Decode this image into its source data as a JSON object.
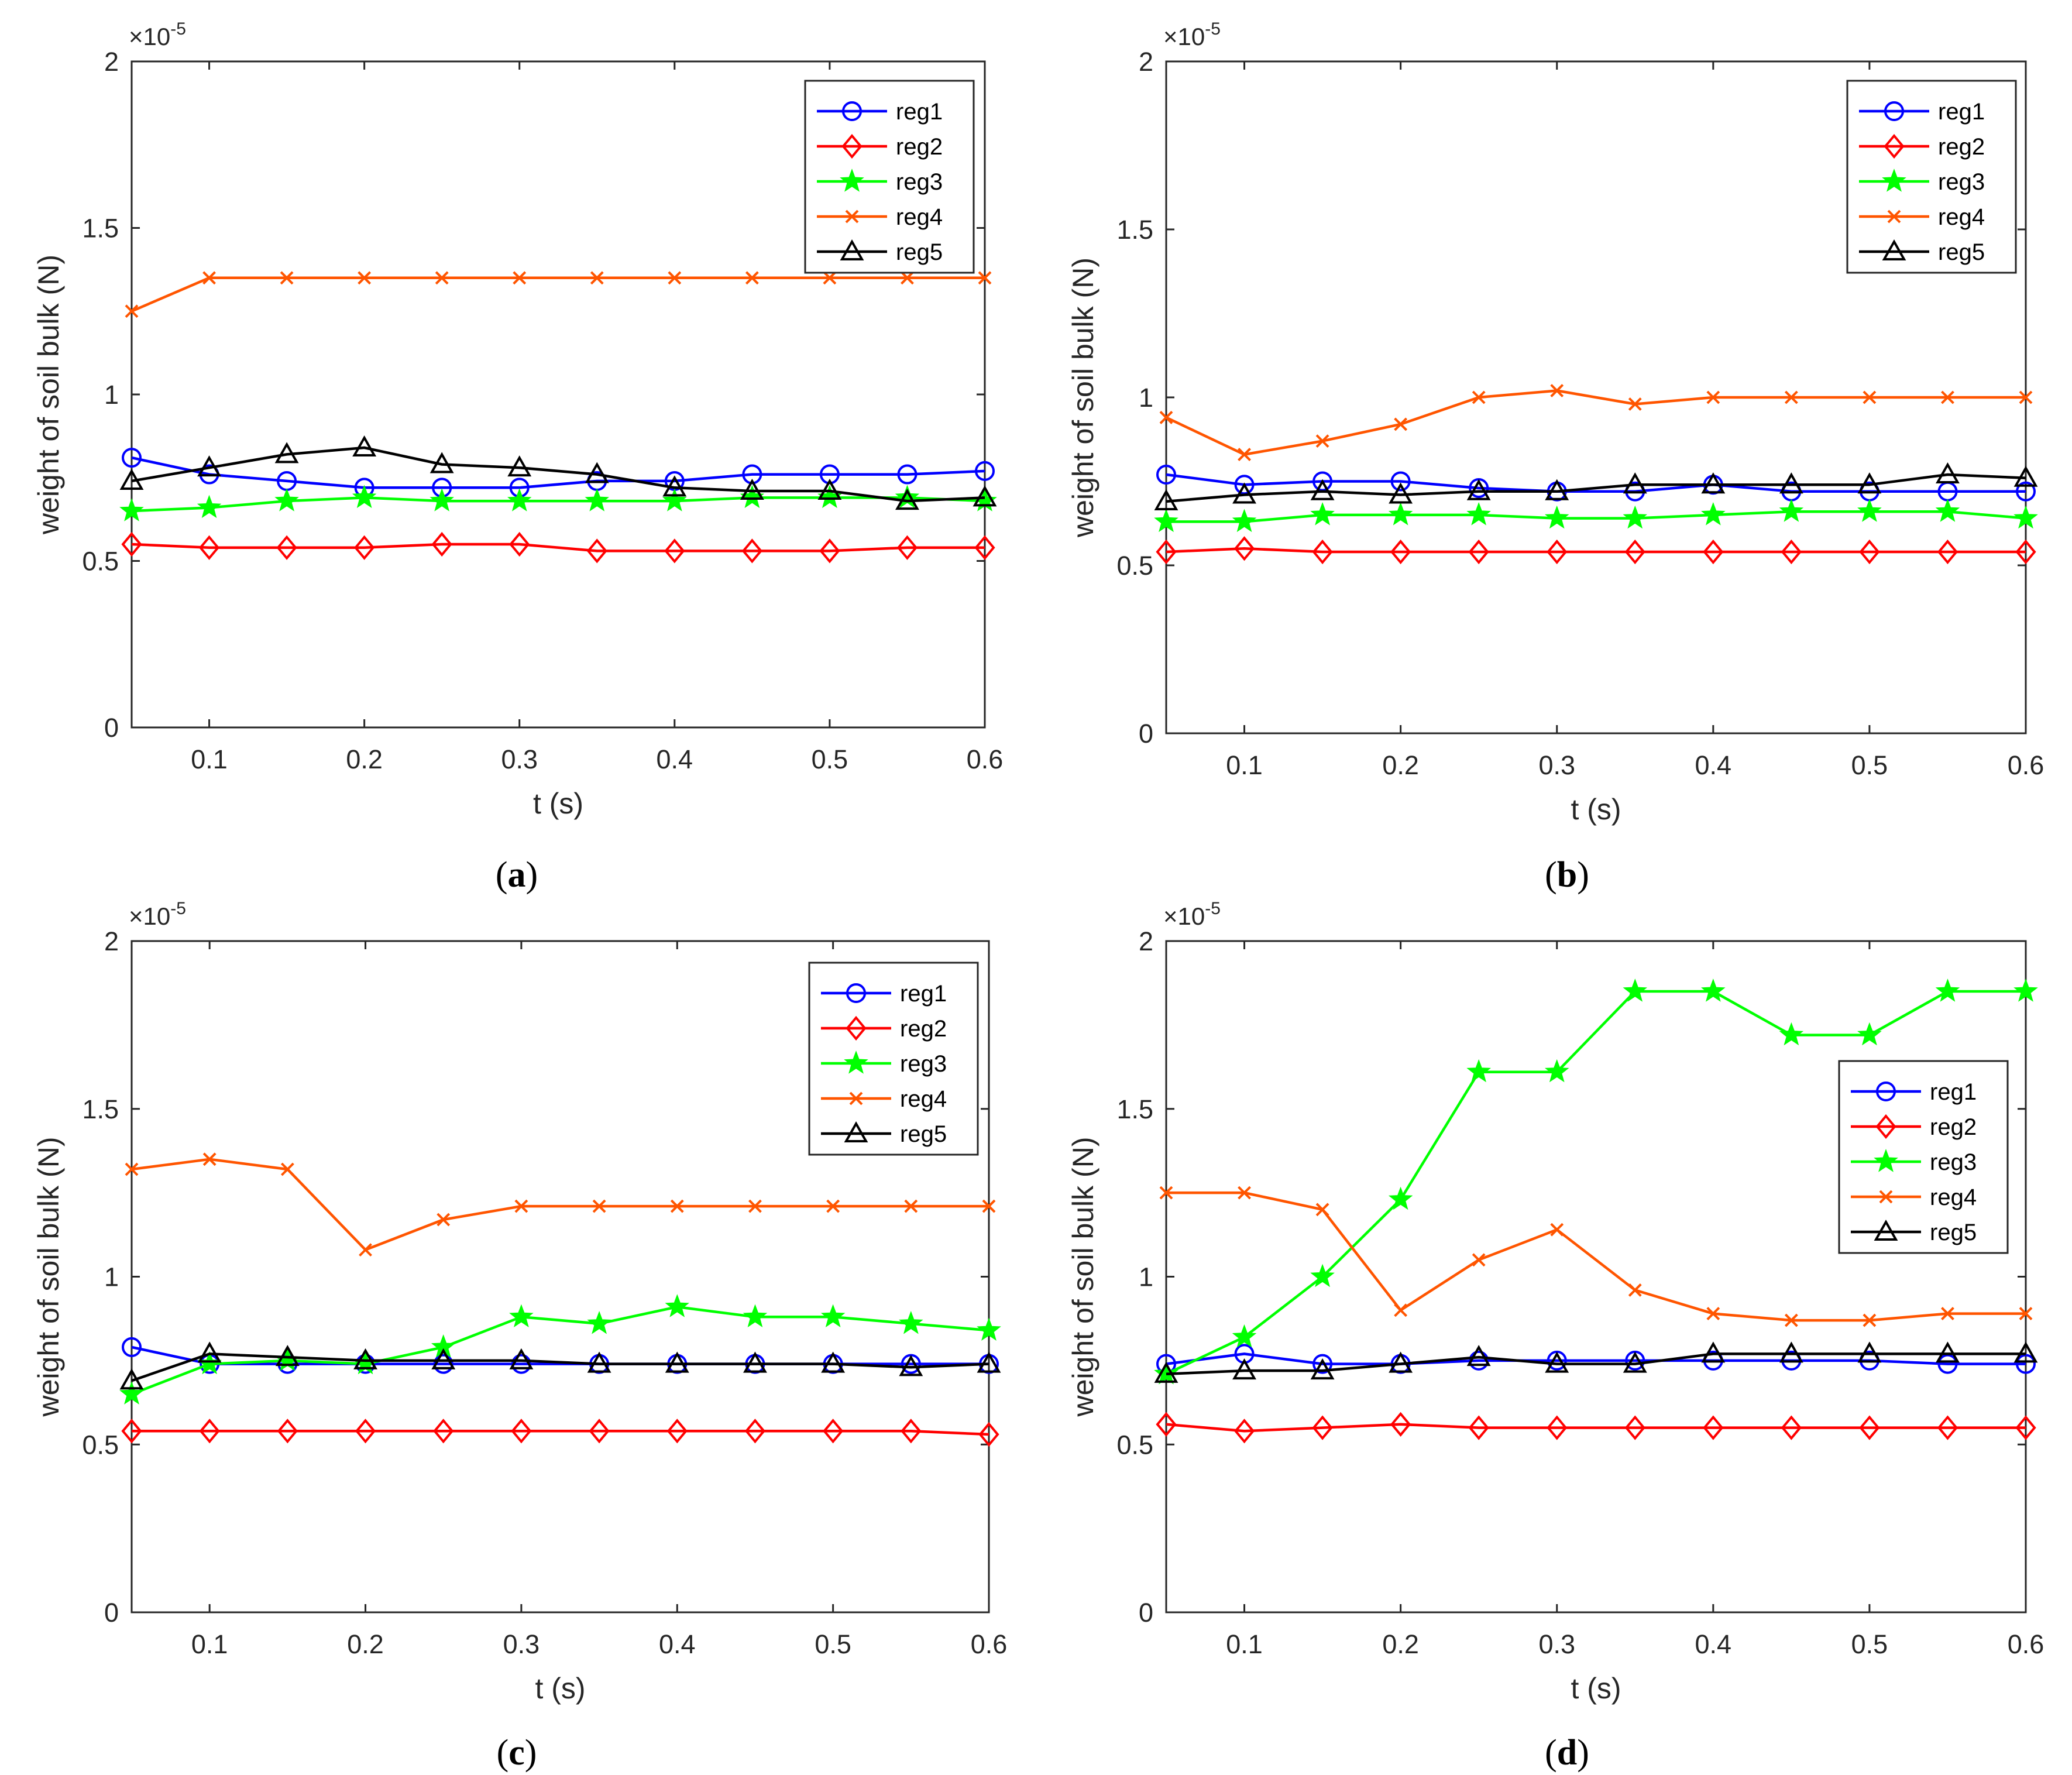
{
  "figure": {
    "panel_captions": [
      {
        "open": "(",
        "letter": "a",
        "close": ")"
      },
      {
        "open": "(",
        "letter": "b",
        "close": ")"
      },
      {
        "open": "(",
        "letter": "c",
        "close": ")"
      },
      {
        "open": "(",
        "letter": "d",
        "close": ")"
      }
    ]
  },
  "colors": {
    "reg1": "#0000ff",
    "reg2": "#ff0000",
    "reg3": "#00ff00",
    "reg4": "#ff5500",
    "reg5": "#000000"
  },
  "markers": {
    "reg1": "circle",
    "reg2": "diamond",
    "reg3": "star",
    "reg4": "x",
    "reg5": "triangle"
  },
  "chart_data": [
    {
      "type": "line",
      "panel": "a",
      "xlabel": "t (s)",
      "ylabel": "weight of soil bulk (N)",
      "y_multiplier": "×10",
      "y_exponent": "-5",
      "xlim": [
        0.05,
        0.6
      ],
      "ylim": [
        0,
        2
      ],
      "xticks": [
        "0.1",
        "0.2",
        "0.3",
        "0.4",
        "0.5",
        "0.6"
      ],
      "yticks": [
        "0",
        "0.5",
        "1",
        "1.5",
        "2"
      ],
      "legend_position": "top-right",
      "x": [
        0.05,
        0.1,
        0.15,
        0.2,
        0.25,
        0.3,
        0.35,
        0.4,
        0.45,
        0.5,
        0.55,
        0.6
      ],
      "series": [
        {
          "name": "reg1",
          "values": [
            0.81,
            0.76,
            0.74,
            0.72,
            0.72,
            0.72,
            0.74,
            0.74,
            0.76,
            0.76,
            0.76,
            0.77
          ]
        },
        {
          "name": "reg2",
          "values": [
            0.55,
            0.54,
            0.54,
            0.54,
            0.55,
            0.55,
            0.53,
            0.53,
            0.53,
            0.53,
            0.54,
            0.54
          ]
        },
        {
          "name": "reg3",
          "values": [
            0.65,
            0.66,
            0.68,
            0.69,
            0.68,
            0.68,
            0.68,
            0.68,
            0.69,
            0.69,
            0.69,
            0.68
          ]
        },
        {
          "name": "reg4",
          "values": [
            1.25,
            1.35,
            1.35,
            1.35,
            1.35,
            1.35,
            1.35,
            1.35,
            1.35,
            1.35,
            1.35,
            1.35
          ]
        },
        {
          "name": "reg5",
          "values": [
            0.74,
            0.78,
            0.82,
            0.84,
            0.79,
            0.78,
            0.76,
            0.72,
            0.71,
            0.71,
            0.68,
            0.69
          ]
        }
      ]
    },
    {
      "type": "line",
      "panel": "b",
      "xlabel": "t (s)",
      "ylabel": "weight of soil bulk (N)",
      "y_multiplier": "×10",
      "y_exponent": "-5",
      "xlim": [
        0.05,
        0.6
      ],
      "ylim": [
        0,
        2
      ],
      "xticks": [
        "0.1",
        "0.2",
        "0.3",
        "0.4",
        "0.5",
        "0.6"
      ],
      "yticks": [
        "0",
        "0.5",
        "1",
        "1.5",
        "2"
      ],
      "legend_position": "top-right",
      "x": [
        0.05,
        0.1,
        0.15,
        0.2,
        0.25,
        0.3,
        0.35,
        0.4,
        0.45,
        0.5,
        0.55,
        0.6
      ],
      "series": [
        {
          "name": "reg1",
          "values": [
            0.77,
            0.74,
            0.75,
            0.75,
            0.73,
            0.72,
            0.72,
            0.74,
            0.72,
            0.72,
            0.72,
            0.72
          ]
        },
        {
          "name": "reg2",
          "values": [
            0.54,
            0.55,
            0.54,
            0.54,
            0.54,
            0.54,
            0.54,
            0.54,
            0.54,
            0.54,
            0.54,
            0.54
          ]
        },
        {
          "name": "reg3",
          "values": [
            0.63,
            0.63,
            0.65,
            0.65,
            0.65,
            0.64,
            0.64,
            0.65,
            0.66,
            0.66,
            0.66,
            0.64
          ]
        },
        {
          "name": "reg4",
          "values": [
            0.94,
            0.83,
            0.87,
            0.92,
            1.0,
            1.02,
            0.98,
            1.0,
            1.0,
            1.0,
            1.0,
            1.0
          ]
        },
        {
          "name": "reg5",
          "values": [
            0.69,
            0.71,
            0.72,
            0.71,
            0.72,
            0.72,
            0.74,
            0.74,
            0.74,
            0.74,
            0.77,
            0.76
          ]
        }
      ]
    },
    {
      "type": "line",
      "panel": "c",
      "xlabel": "t (s)",
      "ylabel": "weight of soil bulk (N)",
      "y_multiplier": "×10",
      "y_exponent": "-5",
      "xlim": [
        0.05,
        0.6
      ],
      "ylim": [
        0,
        2
      ],
      "xticks": [
        "0.1",
        "0.2",
        "0.3",
        "0.4",
        "0.5",
        "0.6"
      ],
      "yticks": [
        "0",
        "0.5",
        "1",
        "1.5",
        "2"
      ],
      "legend_position": "top-right",
      "x": [
        0.05,
        0.1,
        0.15,
        0.2,
        0.25,
        0.3,
        0.35,
        0.4,
        0.45,
        0.5,
        0.55,
        0.6
      ],
      "series": [
        {
          "name": "reg1",
          "values": [
            0.79,
            0.74,
            0.74,
            0.74,
            0.74,
            0.74,
            0.74,
            0.74,
            0.74,
            0.74,
            0.74,
            0.74
          ]
        },
        {
          "name": "reg2",
          "values": [
            0.54,
            0.54,
            0.54,
            0.54,
            0.54,
            0.54,
            0.54,
            0.54,
            0.54,
            0.54,
            0.54,
            0.53
          ]
        },
        {
          "name": "reg3",
          "values": [
            0.65,
            0.74,
            0.75,
            0.74,
            0.79,
            0.88,
            0.86,
            0.91,
            0.88,
            0.88,
            0.86,
            0.84
          ]
        },
        {
          "name": "reg4",
          "values": [
            1.32,
            1.35,
            1.32,
            1.08,
            1.17,
            1.21,
            1.21,
            1.21,
            1.21,
            1.21,
            1.21,
            1.21
          ]
        },
        {
          "name": "reg5",
          "values": [
            0.69,
            0.77,
            0.76,
            0.75,
            0.75,
            0.75,
            0.74,
            0.74,
            0.74,
            0.74,
            0.73,
            0.74
          ]
        }
      ]
    },
    {
      "type": "line",
      "panel": "d",
      "xlabel": "t (s)",
      "ylabel": "weight of soil bulk (N)",
      "y_multiplier": "×10",
      "y_exponent": "-5",
      "xlim": [
        0.05,
        0.6
      ],
      "ylim": [
        0,
        2
      ],
      "xticks": [
        "0.1",
        "0.2",
        "0.3",
        "0.4",
        "0.5",
        "0.6"
      ],
      "yticks": [
        "0",
        "0.5",
        "1",
        "1.5",
        "2"
      ],
      "legend_position": "right",
      "x": [
        0.05,
        0.1,
        0.15,
        0.2,
        0.25,
        0.3,
        0.35,
        0.4,
        0.45,
        0.5,
        0.55,
        0.6
      ],
      "series": [
        {
          "name": "reg1",
          "values": [
            0.74,
            0.77,
            0.74,
            0.74,
            0.75,
            0.75,
            0.75,
            0.75,
            0.75,
            0.75,
            0.74,
            0.74
          ]
        },
        {
          "name": "reg2",
          "values": [
            0.56,
            0.54,
            0.55,
            0.56,
            0.55,
            0.55,
            0.55,
            0.55,
            0.55,
            0.55,
            0.55,
            0.55
          ]
        },
        {
          "name": "reg3",
          "values": [
            0.71,
            0.82,
            1.0,
            1.23,
            1.61,
            1.61,
            1.85,
            1.85,
            1.72,
            1.72,
            1.85,
            1.85
          ]
        },
        {
          "name": "reg4",
          "values": [
            1.25,
            1.25,
            1.2,
            0.9,
            1.05,
            1.14,
            0.96,
            0.89,
            0.87,
            0.87,
            0.89,
            0.89
          ]
        },
        {
          "name": "reg5",
          "values": [
            0.71,
            0.72,
            0.72,
            0.74,
            0.76,
            0.74,
            0.74,
            0.77,
            0.77,
            0.77,
            0.77,
            0.77
          ]
        }
      ]
    }
  ]
}
